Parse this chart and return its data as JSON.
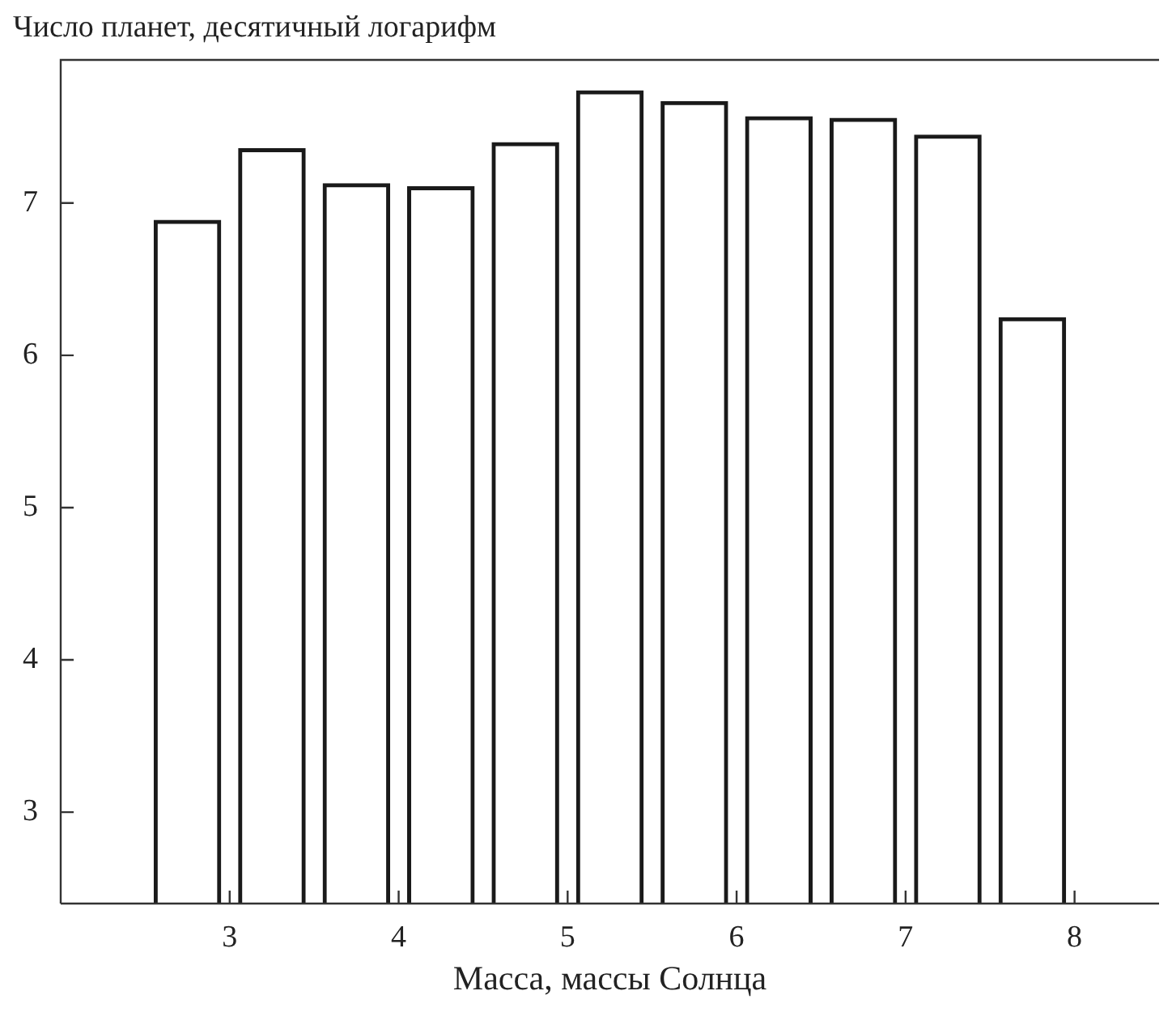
{
  "chart_data": {
    "type": "bar",
    "ylabel": "Число планет, десятичный логарифм",
    "xlabel": "Масса, массы Солнца",
    "x": [
      2.75,
      3.25,
      3.75,
      4.25,
      4.75,
      5.25,
      5.75,
      6.25,
      6.75,
      7.25,
      7.75
    ],
    "values": [
      6.89,
      7.36,
      7.13,
      7.11,
      7.4,
      7.74,
      7.67,
      7.57,
      7.56,
      7.45,
      6.25
    ],
    "color": "#1a1a1a",
    "xlim": [
      2,
      8.5
    ],
    "xticks": [
      3,
      4,
      5,
      6,
      7,
      8
    ],
    "ylim": [
      2.4,
      7.94
    ],
    "yticks": [
      3,
      4,
      5,
      6,
      7
    ]
  }
}
